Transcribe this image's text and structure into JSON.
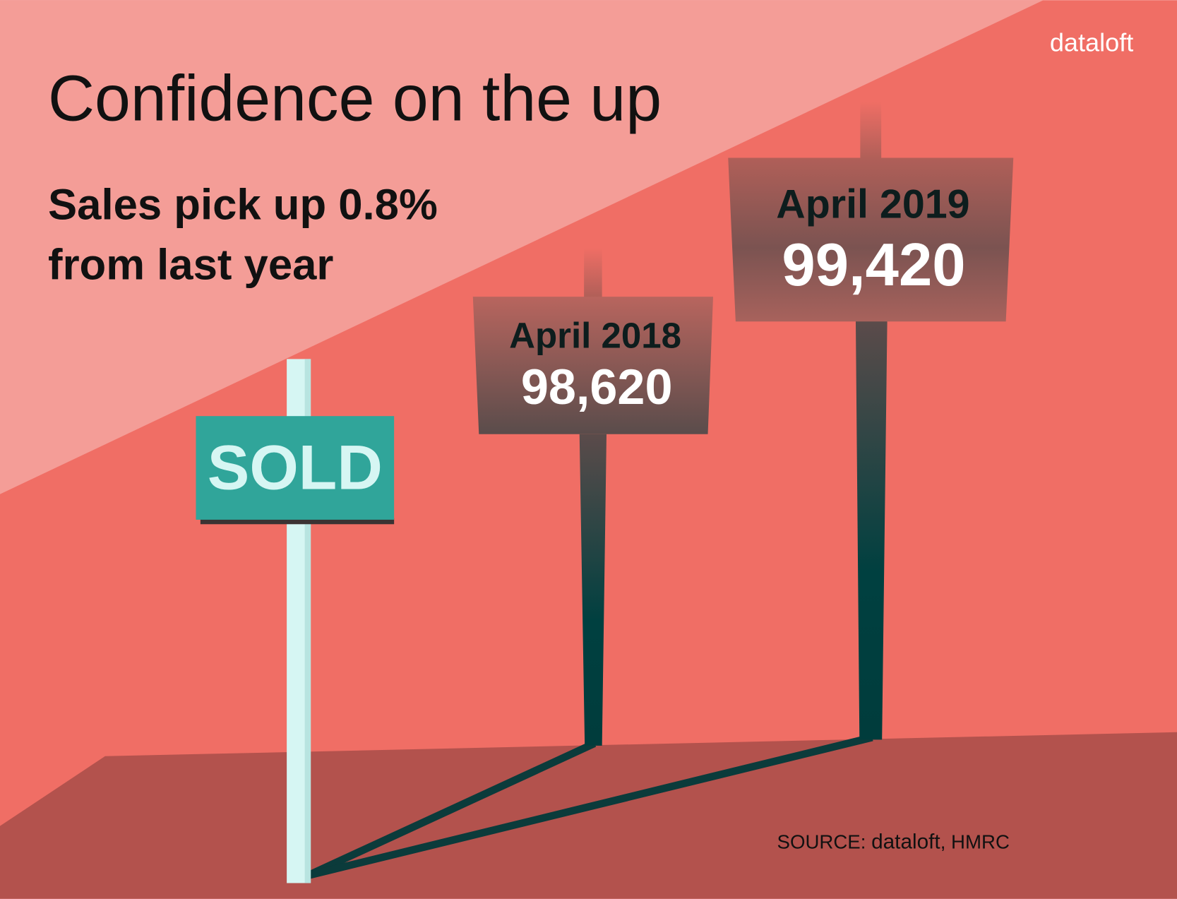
{
  "brand": "dataloft",
  "title": "Confidence on the up",
  "subtitle_lines": [
    "Sales pick up 0.8%",
    "from last year"
  ],
  "sold_sign": "SOLD",
  "signs": [
    {
      "label": "April 2018",
      "value": "98,620"
    },
    {
      "label": "April 2019",
      "value": "99,420"
    }
  ],
  "source": {
    "prefix": "SOURCE:",
    "brand": "dataloft",
    "suffix": ", HMRC"
  }
}
